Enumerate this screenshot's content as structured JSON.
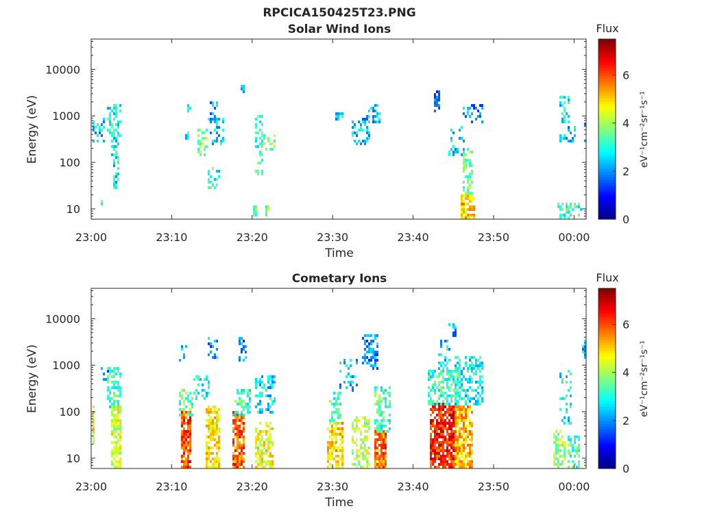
{
  "figure_title": "RPCICA150425T23.PNG",
  "chart_data": [
    {
      "type": "heatmap",
      "title": "Solar Wind Ions",
      "xlabel": "Time",
      "ylabel": "Energy (eV)",
      "x_ticks": [
        "23:00",
        "23:10",
        "23:20",
        "23:30",
        "23:40",
        "23:50",
        "00:00"
      ],
      "xlim_minutes": [
        0,
        61.5
      ],
      "y_scale": "log",
      "y_ticks": [
        10,
        100,
        1000,
        10000
      ],
      "y_tick_labels": [
        "10",
        "100",
        "1000",
        "10000"
      ],
      "ylim": [
        6,
        45000
      ],
      "colorbar": {
        "title": "Flux",
        "label": "eV⁻¹cm⁻²sr⁻¹s⁻¹",
        "ticks": [
          0,
          2,
          4,
          6
        ],
        "range": [
          0,
          7.5
        ],
        "colormap": "jet"
      },
      "blobs": [
        {
          "x": [
            0.3,
            1.7
          ],
          "e": [
            300,
            900
          ],
          "v": 2.5,
          "d": 0.35
        },
        {
          "x": [
            2.2,
            3.6
          ],
          "e": [
            400,
            1700
          ],
          "v": 2.8,
          "d": 0.5
        },
        {
          "x": [
            2.6,
            3.4
          ],
          "e": [
            100,
            400
          ],
          "v": 2.8,
          "d": 0.35
        },
        {
          "x": [
            2.8,
            3.4
          ],
          "e": [
            30,
            100
          ],
          "v": 2.8,
          "d": 0.35
        },
        {
          "x": [
            1.2,
            1.4
          ],
          "e": [
            13,
            17
          ],
          "v": 3,
          "d": 0.6
        },
        {
          "x": [
            12,
            12.4
          ],
          "e": [
            1200,
            1600
          ],
          "v": 2.8,
          "d": 0.6
        },
        {
          "x": [
            11.8,
            12.0
          ],
          "e": [
            350,
            420
          ],
          "v": 2.8,
          "d": 0.6
        },
        {
          "x": [
            13.4,
            14.4
          ],
          "e": [
            150,
            500
          ],
          "v": 3.6,
          "d": 0.45
        },
        {
          "x": [
            14.5,
            16.5
          ],
          "e": [
            250,
            800
          ],
          "v": 2.5,
          "d": 0.35
        },
        {
          "x": [
            14.8,
            15.6
          ],
          "e": [
            900,
            1900
          ],
          "v": 2.0,
          "d": 0.45
        },
        {
          "x": [
            14.6,
            16
          ],
          "e": [
            30,
            90
          ],
          "v": 3,
          "d": 0.25
        },
        {
          "x": [
            18.6,
            18.9
          ],
          "e": [
            3500,
            4200
          ],
          "v": 2.0,
          "d": 0.8
        },
        {
          "x": [
            20.4,
            21.2
          ],
          "e": [
            60,
            1000
          ],
          "v": 3.2,
          "d": 0.3
        },
        {
          "x": [
            21.2,
            22.8
          ],
          "e": [
            200,
            400
          ],
          "v": 3.5,
          "d": 0.35
        },
        {
          "x": [
            20.2,
            20.5
          ],
          "e": [
            7,
            11
          ],
          "v": 3.5,
          "d": 0.9
        },
        {
          "x": [
            21.8,
            22.1
          ],
          "e": [
            7,
            11
          ],
          "v": 3.5,
          "d": 0.9
        },
        {
          "x": [
            30.5,
            31.2
          ],
          "e": [
            900,
            1100
          ],
          "v": 2.5,
          "d": 0.7
        },
        {
          "x": [
            32.5,
            34.5
          ],
          "e": [
            250,
            700
          ],
          "v": 2.5,
          "d": 0.35
        },
        {
          "x": [
            33.8,
            35.8
          ],
          "e": [
            700,
            1600
          ],
          "v": 2.3,
          "d": 0.35
        },
        {
          "x": [
            42.6,
            43.2
          ],
          "e": [
            1300,
            3500
          ],
          "v": 2.0,
          "d": 0.55
        },
        {
          "x": [
            44.5,
            46.5
          ],
          "e": [
            150,
            600
          ],
          "v": 2.5,
          "d": 0.25
        },
        {
          "x": [
            46.2,
            47.4
          ],
          "e": [
            20,
            200
          ],
          "v": 3.6,
          "d": 0.45
        },
        {
          "x": [
            46.0,
            47.6
          ],
          "e": [
            6,
            20
          ],
          "v": 5.0,
          "d": 0.7
        },
        {
          "x": [
            46.4,
            48.6
          ],
          "e": [
            700,
            1700
          ],
          "v": 2.0,
          "d": 0.3
        },
        {
          "x": [
            58.4,
            59.4
          ],
          "e": [
            700,
            2500
          ],
          "v": 2.8,
          "d": 0.4
        },
        {
          "x": [
            58,
            60
          ],
          "e": [
            300,
            600
          ],
          "v": 2.3,
          "d": 0.3
        },
        {
          "x": [
            58,
            60.8
          ],
          "e": [
            6,
            12
          ],
          "v": 3.2,
          "d": 0.4
        },
        {
          "x": [
            61.3,
            61.5
          ],
          "e": [
            300,
            700
          ],
          "v": 2.5,
          "d": 0.6
        }
      ]
    },
    {
      "type": "heatmap",
      "title": "Cometary Ions",
      "xlabel": "Time",
      "ylabel": "Energy (eV)",
      "x_ticks": [
        "23:00",
        "23:10",
        "23:20",
        "23:30",
        "23:40",
        "23:50",
        "00:00"
      ],
      "xlim_minutes": [
        0,
        61.5
      ],
      "y_scale": "log",
      "y_ticks": [
        10,
        100,
        1000,
        10000
      ],
      "y_tick_labels": [
        "10",
        "100",
        "1000",
        "10000"
      ],
      "ylim": [
        6,
        45000
      ],
      "colorbar": {
        "title": "Flux",
        "label": "eV⁻¹cm⁻²sr⁻¹s⁻¹",
        "ticks": [
          0,
          2,
          4,
          6
        ],
        "range": [
          0,
          7.5
        ],
        "colormap": "jet"
      },
      "blobs": [
        {
          "x": [
            0,
            0.4
          ],
          "e": [
            20,
            130
          ],
          "v": 4.6,
          "d": 0.85
        },
        {
          "x": [
            1.2,
            2.0
          ],
          "e": [
            500,
            900
          ],
          "v": 2.2,
          "d": 0.3
        },
        {
          "x": [
            2.2,
            3.6
          ],
          "e": [
            120,
            800
          ],
          "v": 3.3,
          "d": 0.45
        },
        {
          "x": [
            2.5,
            3.5
          ],
          "e": [
            6,
            120
          ],
          "v": 4.4,
          "d": 0.7
        },
        {
          "x": [
            11.2,
            12.4
          ],
          "e": [
            6,
            100
          ],
          "v": 6.0,
          "d": 0.8
        },
        {
          "x": [
            11.0,
            12.6
          ],
          "e": [
            80,
            300
          ],
          "v": 3.5,
          "d": 0.45
        },
        {
          "x": [
            11.0,
            11.8
          ],
          "e": [
            1200,
            2400
          ],
          "v": 2.2,
          "d": 0.45
        },
        {
          "x": [
            12.8,
            14.6
          ],
          "e": [
            180,
            600
          ],
          "v": 2.9,
          "d": 0.35
        },
        {
          "x": [
            14.4,
            15.8
          ],
          "e": [
            6,
            120
          ],
          "v": 4.8,
          "d": 0.7
        },
        {
          "x": [
            14.6,
            15.6
          ],
          "e": [
            1500,
            4000
          ],
          "v": 2.0,
          "d": 0.4
        },
        {
          "x": [
            17.6,
            19.0
          ],
          "e": [
            6,
            100
          ],
          "v": 5.8,
          "d": 0.75
        },
        {
          "x": [
            18.0,
            19.6
          ],
          "e": [
            90,
            300
          ],
          "v": 3.2,
          "d": 0.45
        },
        {
          "x": [
            18.4,
            19.2
          ],
          "e": [
            1300,
            4000
          ],
          "v": 2.0,
          "d": 0.3
        },
        {
          "x": [
            20.5,
            22.5
          ],
          "e": [
            6,
            60
          ],
          "v": 4.6,
          "d": 0.55
        },
        {
          "x": [
            20.5,
            22.8
          ],
          "e": [
            100,
            600
          ],
          "v": 2.6,
          "d": 0.4
        },
        {
          "x": [
            29.4,
            31.2
          ],
          "e": [
            6,
            60
          ],
          "v": 5.0,
          "d": 0.6
        },
        {
          "x": [
            29.6,
            31.0
          ],
          "e": [
            60,
            250
          ],
          "v": 3.4,
          "d": 0.45
        },
        {
          "x": [
            31.0,
            33.0
          ],
          "e": [
            300,
            1300
          ],
          "v": 2.4,
          "d": 0.3
        },
        {
          "x": [
            32.4,
            34.6
          ],
          "e": [
            6,
            70
          ],
          "v": 4.2,
          "d": 0.45
        },
        {
          "x": [
            33.8,
            35.6
          ],
          "e": [
            900,
            4500
          ],
          "v": 2.0,
          "d": 0.5
        },
        {
          "x": [
            35.4,
            36.6
          ],
          "e": [
            6,
            40
          ],
          "v": 5.8,
          "d": 0.85
        },
        {
          "x": [
            35.4,
            37.0
          ],
          "e": [
            40,
            350
          ],
          "v": 3.3,
          "d": 0.45
        },
        {
          "x": [
            42.2,
            45.2
          ],
          "e": [
            6,
            150
          ],
          "v": 6.3,
          "d": 0.8
        },
        {
          "x": [
            42.0,
            45.6
          ],
          "e": [
            150,
            700
          ],
          "v": 3.2,
          "d": 0.55
        },
        {
          "x": [
            43.2,
            44.6
          ],
          "e": [
            700,
            3500
          ],
          "v": 2.5,
          "d": 0.3
        },
        {
          "x": [
            44.6,
            45.2
          ],
          "e": [
            4500,
            8500
          ],
          "v": 2.0,
          "d": 0.5
        },
        {
          "x": [
            45.2,
            47.4
          ],
          "e": [
            6,
            120
          ],
          "v": 5.2,
          "d": 0.75
        },
        {
          "x": [
            45.4,
            48.6
          ],
          "e": [
            150,
            1500
          ],
          "v": 2.8,
          "d": 0.45
        },
        {
          "x": [
            57.6,
            58.8
          ],
          "e": [
            6,
            40
          ],
          "v": 4.0,
          "d": 0.55
        },
        {
          "x": [
            58.2,
            59.6
          ],
          "e": [
            60,
            700
          ],
          "v": 2.8,
          "d": 0.35
        },
        {
          "x": [
            59.4,
            60.6
          ],
          "e": [
            6,
            30
          ],
          "v": 3.4,
          "d": 0.5
        },
        {
          "x": [
            61.2,
            61.5
          ],
          "e": [
            1500,
            4000
          ],
          "v": 2.4,
          "d": 0.6
        }
      ]
    }
  ]
}
